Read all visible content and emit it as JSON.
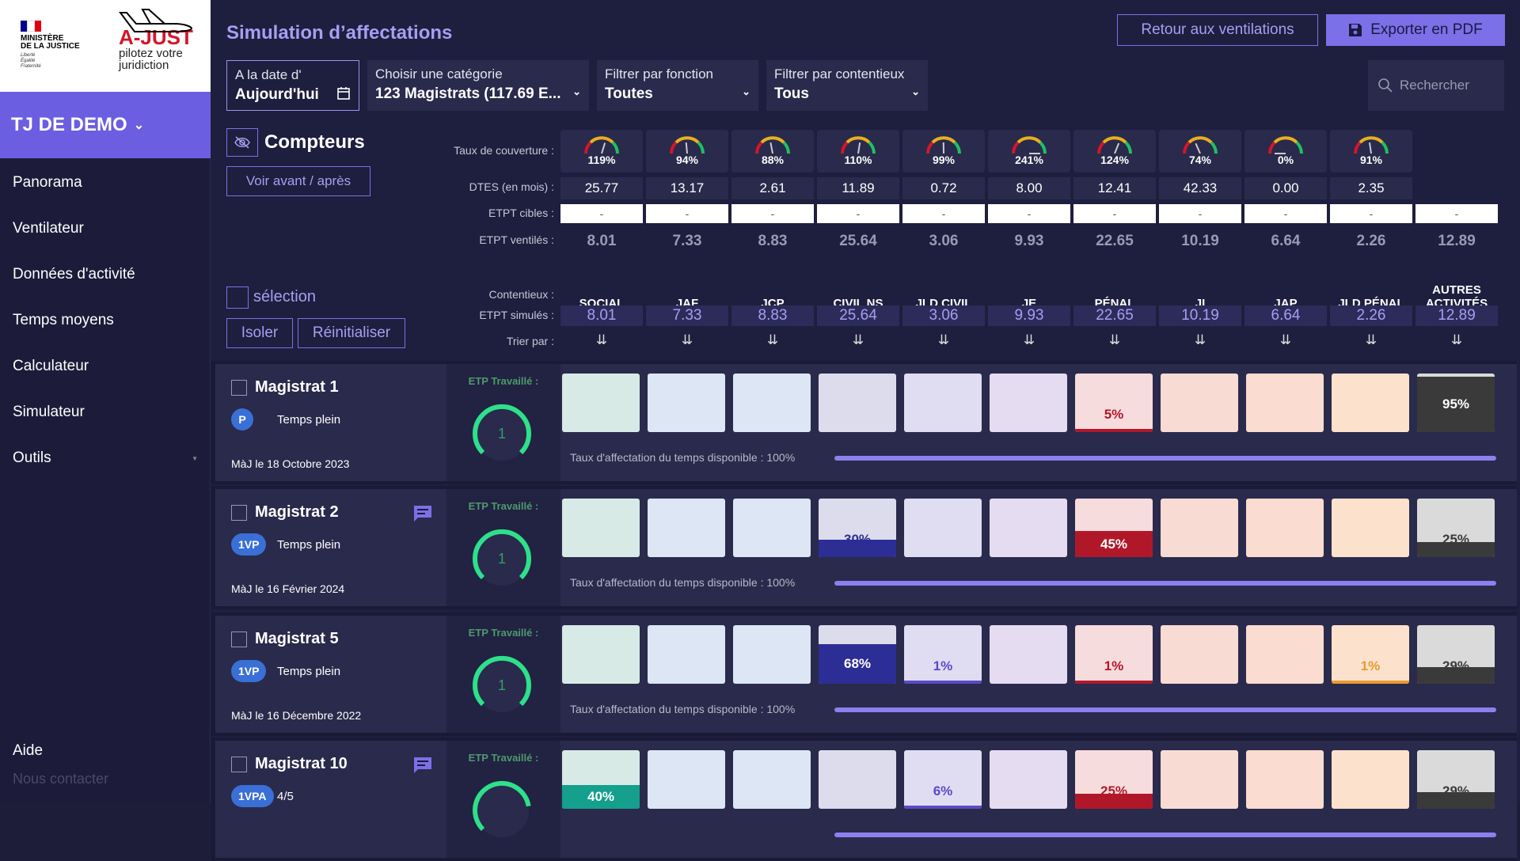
{
  "brand": {
    "ministry": [
      "MINISTÈRE",
      "DE LA JUSTICE"
    ],
    "motto": [
      "Liberté",
      "Égalité",
      "Fraternité"
    ],
    "name": "A-JUST",
    "tagline": [
      "pilotez votre",
      "juridiction"
    ]
  },
  "sidebar": {
    "court": "TJ DE DEMO",
    "items": [
      "Panorama",
      "Ventilateur",
      "Données d'activité",
      "Temps moyens",
      "Calculateur",
      "Simulateur",
      "Outils"
    ],
    "help": "Aide",
    "contact": "Nous contacter"
  },
  "header": {
    "title": "Simulation d’affectations",
    "back_label": "Retour aux ventilations",
    "export_label": "Exporter en PDF"
  },
  "filters": {
    "date": {
      "label": "A la date d'",
      "value": "Aujourd'hui"
    },
    "category": {
      "label": "Choisir une catégorie",
      "value": "123 Magistrats (117.69 E..."
    },
    "function": {
      "label": "Filtrer par fonction",
      "value": "Toutes"
    },
    "contentieux": {
      "label": "Filtrer par contentieux",
      "value": "Tous"
    },
    "search_placeholder": "Rechercher"
  },
  "counters": {
    "title": "Compteurs",
    "before_after": "Voir avant / après",
    "row_labels": {
      "coverage": "Taux de couverture :",
      "dtes": "DTES (en mois) :",
      "etpt_target": "ETPT cibles :",
      "etpt_vent": "ETPT ventilés :",
      "contentieux": "Contentieux :",
      "etpt_sim": "ETPT simulés :",
      "sort": "Trier par :"
    },
    "columns": [
      {
        "name": "SOCIAL",
        "coverage": "119%",
        "cov_val": 119,
        "dtes": "25.77",
        "cible": "-",
        "vent": "8.01",
        "sim": "8.01"
      },
      {
        "name": "JAF",
        "coverage": "94%",
        "cov_val": 94,
        "dtes": "13.17",
        "cible": "-",
        "vent": "7.33",
        "sim": "7.33"
      },
      {
        "name": "JCP",
        "coverage": "88%",
        "cov_val": 88,
        "dtes": "2.61",
        "cible": "-",
        "vent": "8.83",
        "sim": "8.83"
      },
      {
        "name": "CIVIL NS",
        "coverage": "110%",
        "cov_val": 110,
        "dtes": "11.89",
        "cible": "-",
        "vent": "25.64",
        "sim": "25.64"
      },
      {
        "name": "JLD CIVIL",
        "coverage": "99%",
        "cov_val": 99,
        "dtes": "0.72",
        "cible": "-",
        "vent": "3.06",
        "sim": "3.06"
      },
      {
        "name": "JE",
        "coverage": "241%",
        "cov_val": 241,
        "dtes": "8.00",
        "cible": "-",
        "vent": "9.93",
        "sim": "9.93"
      },
      {
        "name": "PÉNAL",
        "coverage": "124%",
        "cov_val": 124,
        "dtes": "12.41",
        "cible": "-",
        "vent": "22.65",
        "sim": "22.65"
      },
      {
        "name": "JI",
        "coverage": "74%",
        "cov_val": 74,
        "dtes": "42.33",
        "cible": "-",
        "vent": "10.19",
        "sim": "10.19"
      },
      {
        "name": "JAP",
        "coverage": "0%",
        "cov_val": 0,
        "dtes": "0.00",
        "cible": "-",
        "vent": "6.64",
        "sim": "6.64"
      },
      {
        "name": "JLD PÉNAL",
        "coverage": "91%",
        "cov_val": 91,
        "dtes": "2.35",
        "cible": "-",
        "vent": "2.26",
        "sim": "2.26"
      },
      {
        "name": "AUTRES ACTIVITÉS",
        "coverage": "",
        "cov_val": null,
        "dtes": "",
        "cible": "-",
        "vent": "12.89",
        "sim": "12.89"
      }
    ],
    "sort_icon": "sort-desc-icon"
  },
  "selection": {
    "label": "sélection",
    "isolate": "Isoler",
    "reset": "Réinitialiser"
  },
  "colors": {
    "accent": "#7b70e8",
    "cell_bg": [
      "#d8eae6",
      "#dce6f4",
      "#dce6f4",
      "#dcdcec",
      "#e0dcf2",
      "#e6dcf2",
      "#f6dcdc",
      "#f8dcd4",
      "#fadcd0",
      "#fce2cc",
      "#dadada"
    ],
    "cell_fill": [
      "#14a08c",
      "#3a6fd6",
      "#3a6fd6",
      "#2d2d96",
      "#5a4ac8",
      "#7a4ac0",
      "#b0182a",
      "#c04a30",
      "#d06a30",
      "#e89a30",
      "#3a3a3a"
    ]
  },
  "magistrates": [
    {
      "name": "Magistrat 1",
      "badge": "P",
      "time": "Temps plein",
      "updated": "MàJ le 18 Octobre 2023",
      "comment": false,
      "etp_label": "ETP Travaillé :",
      "etp": "1",
      "etp_fraction": 1.0,
      "rate_label": "Taux d'affectation du temps disponible : 100%",
      "rate": 1.0,
      "cells": [
        null,
        null,
        null,
        null,
        null,
        null,
        5,
        null,
        null,
        null,
        95
      ],
      "labels": [
        "",
        "",
        "",
        "",
        "",
        "",
        "5%",
        "",
        "",
        "",
        "95%"
      ]
    },
    {
      "name": "Magistrat 2",
      "badge": "1VP",
      "time": "Temps plein",
      "updated": "MàJ le 16 Février 2024",
      "comment": true,
      "etp_label": "ETP Travaillé :",
      "etp": "1",
      "etp_fraction": 1.0,
      "rate_label": "Taux d'affectation du temps disponible : 100%",
      "rate": 1.0,
      "cells": [
        null,
        null,
        null,
        30,
        null,
        null,
        45,
        null,
        null,
        null,
        25
      ],
      "labels": [
        "",
        "",
        "",
        "30%",
        "",
        "",
        "45%",
        "",
        "",
        "",
        "25%"
      ]
    },
    {
      "name": "Magistrat 5",
      "badge": "1VP",
      "time": "Temps plein",
      "updated": "MàJ le 16 Décembre 2022",
      "comment": false,
      "etp_label": "ETP Travaillé :",
      "etp": "1",
      "etp_fraction": 1.0,
      "rate_label": "Taux d'affectation du temps disponible : 100%",
      "rate": 1.0,
      "cells": [
        null,
        null,
        null,
        68,
        1,
        null,
        1,
        null,
        null,
        1,
        29
      ],
      "labels": [
        "",
        "",
        "",
        "68%",
        "1%",
        "",
        "1%",
        "",
        "",
        "1%",
        "29%"
      ]
    },
    {
      "name": "Magistrat 10",
      "badge": "1VPA",
      "time": "4/5",
      "updated": "",
      "comment": true,
      "etp_label": "ETP Travaillé :",
      "etp": "",
      "etp_fraction": 0.8,
      "rate_label": "",
      "rate": 1.0,
      "cells": [
        40,
        null,
        null,
        null,
        6,
        null,
        25,
        null,
        null,
        null,
        29
      ],
      "labels": [
        "40%",
        "",
        "",
        "",
        "6%",
        "",
        "25%",
        "",
        "",
        "",
        "29%"
      ]
    }
  ]
}
